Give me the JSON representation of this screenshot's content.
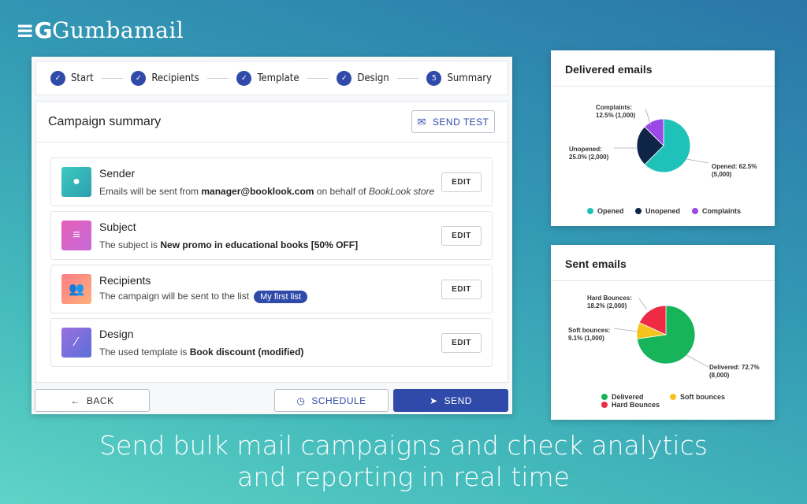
{
  "brand": {
    "name": "Gumbamail",
    "logo_letters": "G"
  },
  "stepper": {
    "steps": [
      {
        "label": "Start",
        "state": "done"
      },
      {
        "label": "Recipients",
        "state": "done"
      },
      {
        "label": "Template",
        "state": "done"
      },
      {
        "label": "Design",
        "state": "done"
      },
      {
        "label": "Summary",
        "state": "current",
        "number": "5"
      }
    ]
  },
  "summary": {
    "title": "Campaign summary",
    "send_test_label": "SEND TEST",
    "items": [
      {
        "title": "Sender",
        "pre": "Emails will be sent from ",
        "bold": "manager@booklook.com",
        "mid": " on behalf of ",
        "italic": "BookLook store",
        "edit": "EDIT",
        "icon": "person-icon",
        "color1": "#3ec9c0",
        "color2": "#2c9fb0"
      },
      {
        "title": "Subject",
        "pre": "The subject is ",
        "bold": "New promo in educational books [50% OFF]",
        "edit": "EDIT",
        "icon": "text-lines-icon",
        "color1": "#e65fb7",
        "color2": "#c46ad9"
      },
      {
        "title": "Recipients",
        "pre": "The campaign will be sent to the list",
        "tag": "My first list",
        "edit": "EDIT",
        "icon": "group-icon",
        "color1": "#fb7d86",
        "color2": "#fdb07b"
      },
      {
        "title": "Design",
        "pre": "The used template is ",
        "bold": "Book discount (modified)",
        "edit": "EDIT",
        "icon": "brush-icon",
        "color1": "#9a6fe0",
        "color2": "#5b6fd8"
      }
    ]
  },
  "actions": {
    "back": "BACK",
    "schedule": "SCHEDULE",
    "send": "SEND"
  },
  "accent": "#2f4aa8",
  "tagline": {
    "line1": "Send bulk mail campaigns and check analytics",
    "line2": "and reporting in real time"
  },
  "chart_data": [
    {
      "type": "pie",
      "title": "Delivered emails",
      "slices": [
        {
          "name": "Opened",
          "value": 5000,
          "percent": 62.5,
          "label": "Opened: 62.5%",
          "label2": "(5,000)",
          "color": "#1fc2b8"
        },
        {
          "name": "Unopened",
          "value": 2000,
          "percent": 25.0,
          "label": "Unopened:",
          "label2": "25.0% (2,000)",
          "color": "#0f2547"
        },
        {
          "name": "Complaints",
          "value": 1000,
          "percent": 12.5,
          "label": "Complaints:",
          "label2": "12.5% (1,000)",
          "color": "#9a49e6"
        }
      ],
      "legend": "bottom"
    },
    {
      "type": "pie",
      "title": "Sent emails",
      "slices": [
        {
          "name": "Delivered",
          "value": 8000,
          "percent": 72.7,
          "label": "Delivered: 72.7%",
          "label2": "(8,000)",
          "color": "#17b45a"
        },
        {
          "name": "Soft bounces",
          "value": 1000,
          "percent": 9.1,
          "label": "Soft bounces:",
          "label2": "9.1% (1,000)",
          "color": "#f6c21c"
        },
        {
          "name": "Hard Bounces",
          "value": 2000,
          "percent": 18.2,
          "label": "Hard Bounces:",
          "label2": "18.2% (2,000)",
          "color": "#ee2a44"
        }
      ],
      "legend": "bottom"
    }
  ]
}
